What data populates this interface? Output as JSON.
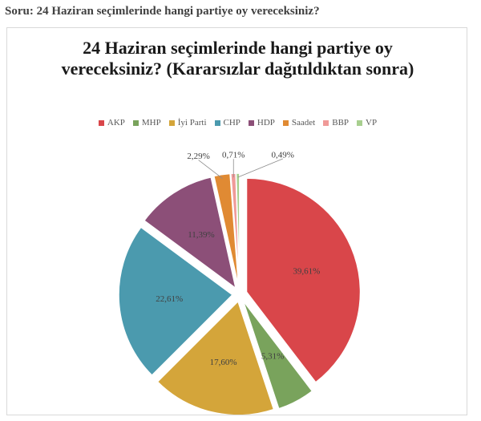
{
  "question": "Soru: 24 Haziran seçimlerinde hangi partiye oy vereceksiniz?",
  "chart_data": {
    "type": "pie",
    "title": "24 Haziran seçimlerinde hangi partiye oy vereceksiniz? (Kararsızlar dağıtıldıktan sonra)",
    "legend_position": "top",
    "slices": [
      {
        "label": "AKP",
        "value": 39.61,
        "value_label": "39,61%",
        "color": "#d9464a"
      },
      {
        "label": "MHP",
        "value": 5.31,
        "value_label": "5,31%",
        "color": "#79a35c"
      },
      {
        "label": "İyi Parti",
        "value": 17.6,
        "value_label": "17,60%",
        "color": "#d4a53a"
      },
      {
        "label": "CHP",
        "value": 22.61,
        "value_label": "22,61%",
        "color": "#4b9aae"
      },
      {
        "label": "HDP",
        "value": 11.39,
        "value_label": "11,39%",
        "color": "#8c4f78"
      },
      {
        "label": "Saadet",
        "value": 2.29,
        "value_label": "2,29%",
        "color": "#e08a33"
      },
      {
        "label": "BBP",
        "value": 0.71,
        "value_label": "0,71%",
        "color": "#f09a98"
      },
      {
        "label": "VP",
        "value": 0.49,
        "value_label": "0,49%",
        "color": "#a8cf8f"
      }
    ]
  }
}
